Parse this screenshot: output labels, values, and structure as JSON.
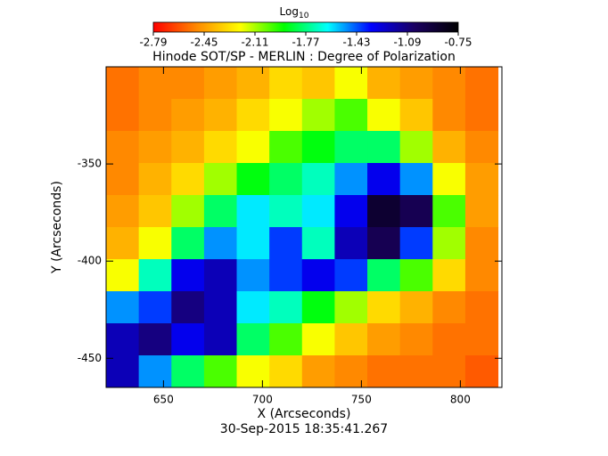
{
  "chart_data": {
    "type": "heatmap",
    "title": "Hinode SOT/SP - MERLIN : Degree of Polarization",
    "xlabel": "X (Arcseconds)",
    "ylabel": "Y (Arcseconds)",
    "footer": "30-Sep-2015 18:35:41.267",
    "colorbar_label": "Log",
    "colorbar_label_sub": "10",
    "colormap": [
      "#ff0000",
      "#ff8a00",
      "#ffff00",
      "#00ff00",
      "#00ffff",
      "#0000ff",
      "#1a0060",
      "#000000"
    ],
    "clim": [
      -2.79,
      -0.75
    ],
    "colorbar_ticks": [
      -2.79,
      -2.45,
      -2.11,
      -1.77,
      -1.43,
      -1.09,
      -0.75
    ],
    "xlim": [
      621,
      821
    ],
    "ylim": [
      -465,
      -300
    ],
    "xticks": [
      650,
      700,
      750,
      800
    ],
    "yticks": [
      -350,
      -400,
      -450
    ],
    "x": [
      629.25,
      645.75,
      662.25,
      678.75,
      695.25,
      711.75,
      728.25,
      744.75,
      761.25,
      777.75,
      794.25,
      810.75
    ],
    "y": [
      -308.25,
      -324.75,
      -341.25,
      -357.75,
      -374.25,
      -390.75,
      -407.25,
      -423.75,
      -440.25,
      -456.75
    ],
    "z": [
      [
        -2.55,
        -2.5,
        -2.5,
        -2.45,
        -2.4,
        -2.3,
        -2.35,
        -2.2,
        -2.4,
        -2.45,
        -2.5,
        -2.55
      ],
      [
        -2.55,
        -2.5,
        -2.45,
        -2.4,
        -2.3,
        -2.2,
        -2.1,
        -2.0,
        -2.2,
        -2.35,
        -2.5,
        -2.55
      ],
      [
        -2.5,
        -2.45,
        -2.4,
        -2.3,
        -2.2,
        -2.0,
        -1.9,
        -1.8,
        -1.8,
        -2.1,
        -2.4,
        -2.5
      ],
      [
        -2.5,
        -2.4,
        -2.3,
        -2.1,
        -1.9,
        -1.8,
        -1.7,
        -1.5,
        -1.3,
        -1.5,
        -2.2,
        -2.45
      ],
      [
        -2.45,
        -2.35,
        -2.1,
        -1.8,
        -1.6,
        -1.7,
        -1.6,
        -1.3,
        -0.9,
        -1.0,
        -2.0,
        -2.45
      ],
      [
        -2.4,
        -2.2,
        -1.8,
        -1.5,
        -1.6,
        -1.4,
        -1.7,
        -1.2,
        -1.0,
        -1.4,
        -2.1,
        -2.5
      ],
      [
        -2.2,
        -1.7,
        -1.3,
        -1.2,
        -1.5,
        -1.4,
        -1.3,
        -1.4,
        -1.8,
        -2.0,
        -2.3,
        -2.5
      ],
      [
        -1.5,
        -1.4,
        -1.1,
        -1.2,
        -1.6,
        -1.7,
        -1.9,
        -2.1,
        -2.3,
        -2.4,
        -2.5,
        -2.55
      ],
      [
        -1.2,
        -1.1,
        -1.3,
        -1.2,
        -1.8,
        -2.0,
        -2.2,
        -2.35,
        -2.45,
        -2.5,
        -2.55,
        -2.55
      ],
      [
        -1.2,
        -1.5,
        -1.8,
        -2.0,
        -2.2,
        -2.3,
        -2.45,
        -2.5,
        -2.55,
        -2.55,
        -2.55,
        -2.6
      ]
    ]
  }
}
